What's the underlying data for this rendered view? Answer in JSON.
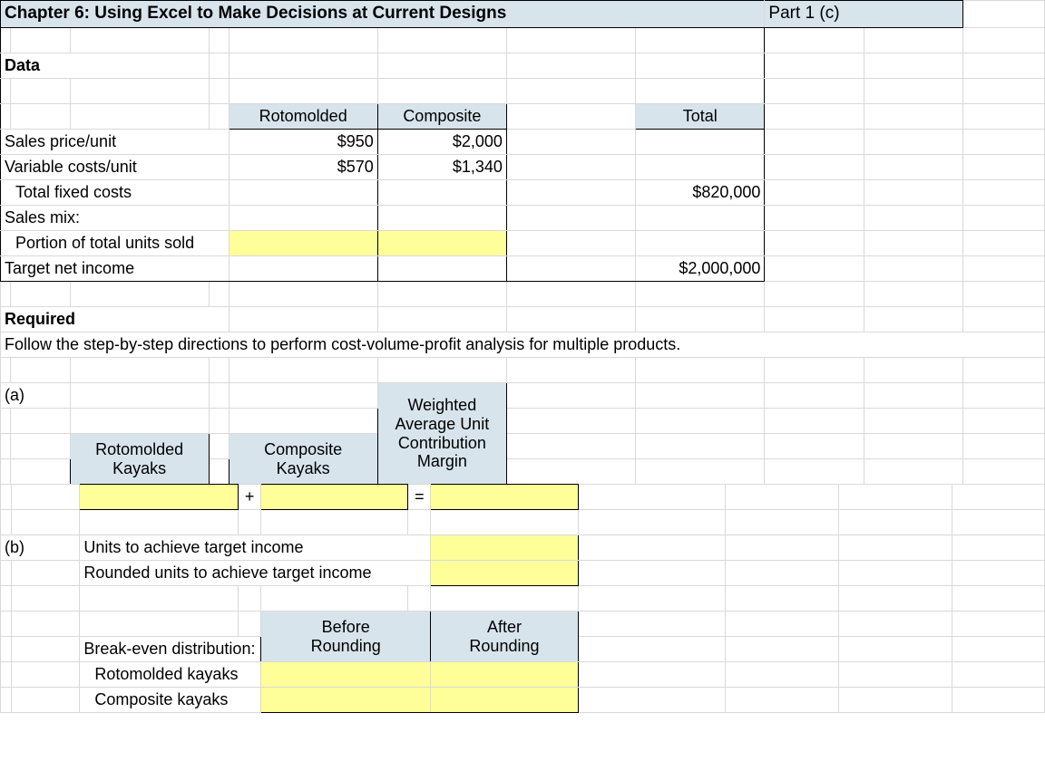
{
  "colors": {
    "header_fill": "#d8e4eb",
    "input_fill": "#ffff9a",
    "grid_line": "#d9d9d9",
    "border": "#000000",
    "text": "#000000",
    "background": "#ffffff"
  },
  "title": {
    "chapter": "Chapter 6: Using Excel to Make Decisions at Current Designs",
    "part": "Part 1 (c)"
  },
  "data_section": {
    "heading": "Data",
    "col_headers": {
      "rotomolded": "Rotomolded",
      "composite": "Composite",
      "total": "Total"
    },
    "rows": {
      "sales_price": {
        "label": "Sales price/unit",
        "rotomolded": "$950",
        "composite": "$2,000"
      },
      "variable_costs": {
        "label": "Variable costs/unit",
        "rotomolded": "$570",
        "composite": "$1,340"
      },
      "total_fixed": {
        "label": "Total fixed costs",
        "total": "$820,000"
      },
      "sales_mix": {
        "label": "Sales mix:"
      },
      "portion": {
        "label": "Portion of total units sold"
      },
      "target_income": {
        "label": "Target net income",
        "total": "$2,000,000"
      }
    }
  },
  "required": {
    "heading": "Required",
    "instructions": "Follow the step-by-step directions to perform cost-volume-profit analysis for multiple products."
  },
  "part_a": {
    "label": "(a)",
    "headers": {
      "rotomolded": "Rotomolded\nKayaks",
      "composite": "Composite\nKayaks",
      "weighted": "Weighted\nAverage Unit\nContribution\nMargin"
    },
    "ops": {
      "plus": "+",
      "equals": "="
    }
  },
  "part_b": {
    "label": "(b)",
    "units_label": "Units to achieve target income",
    "rounded_label": "Rounded units to achieve target income",
    "break_even_heading": "Break-even distribution:",
    "before": "Before\nRounding",
    "after": "After\nRounding",
    "rotomolded": "Rotomolded kayaks",
    "composite": "Composite kayaks"
  }
}
